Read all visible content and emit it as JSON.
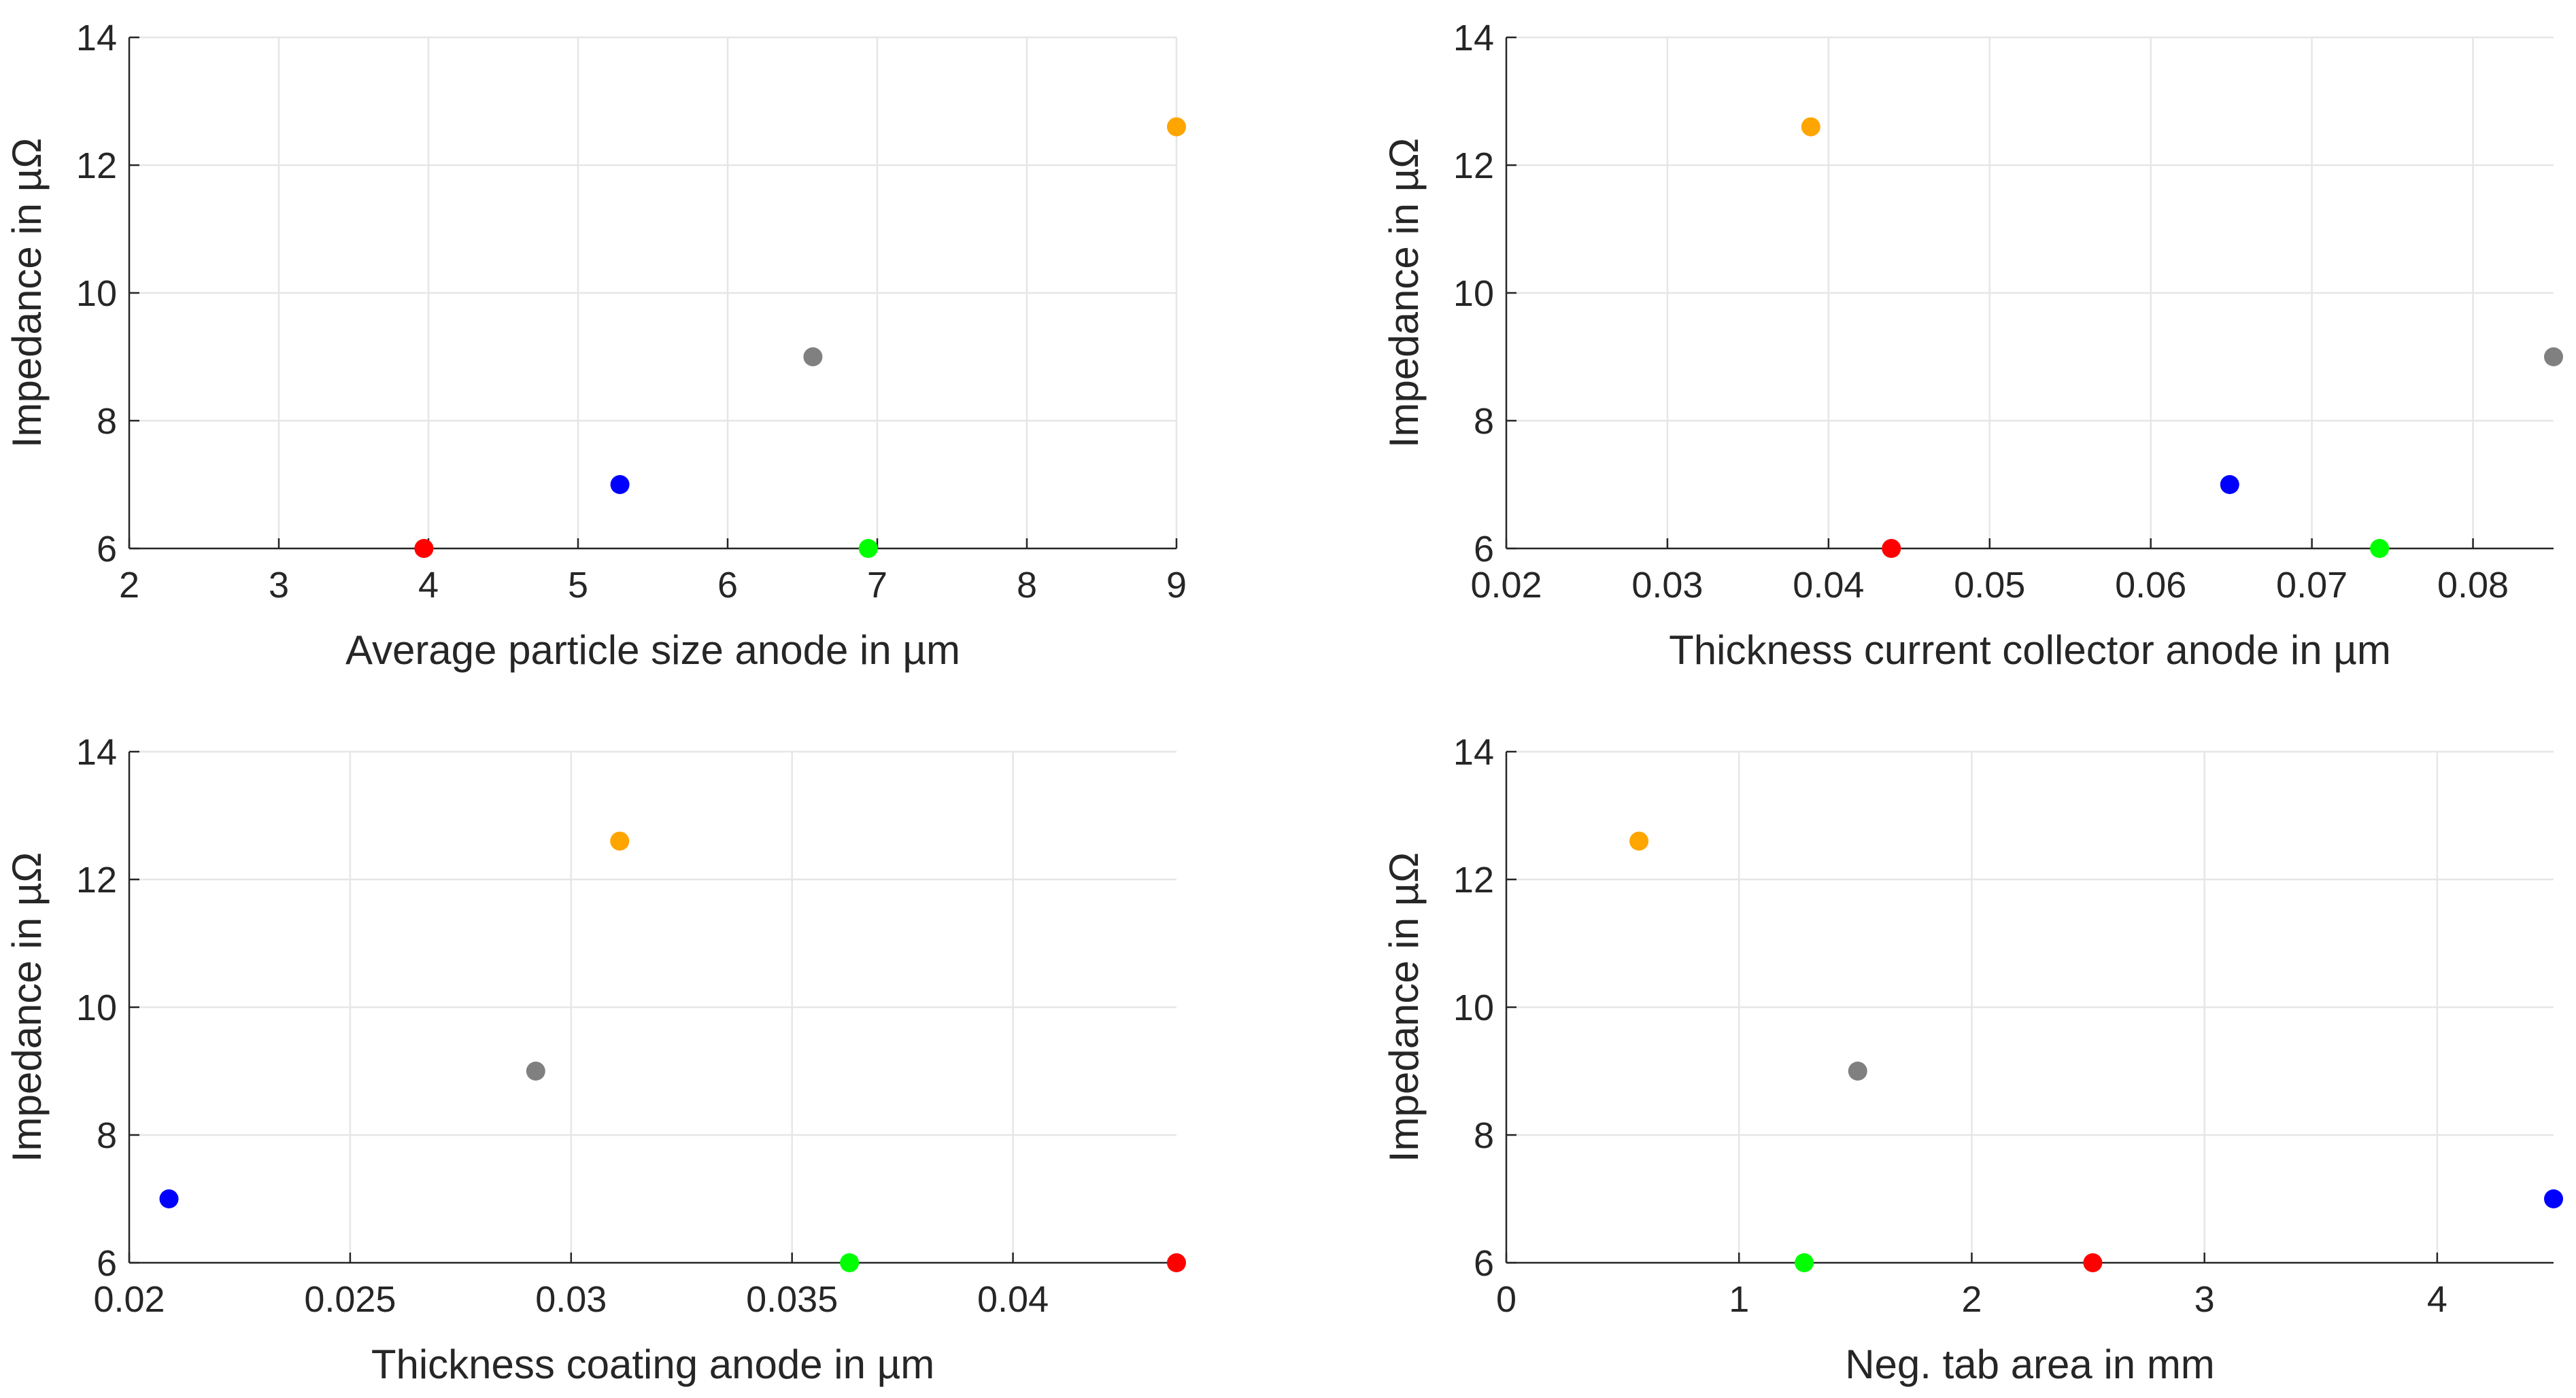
{
  "chart_data": [
    {
      "type": "scatter",
      "xlabel": "Average particle size anode in µm",
      "ylabel": "Impedance in µΩ",
      "xlim": [
        2,
        9
      ],
      "ylim": [
        6,
        14
      ],
      "xticks": [
        2,
        3,
        4,
        5,
        6,
        7,
        8,
        9
      ],
      "xtick_labels": [
        "2",
        "3",
        "4",
        "5",
        "6",
        "7",
        "8",
        "9"
      ],
      "yticks": [
        6,
        8,
        10,
        12,
        14
      ],
      "ytick_labels": [
        "6",
        "8",
        "10",
        "12",
        "14"
      ],
      "grid": true,
      "points": [
        {
          "x": 3.97,
          "y": 6.0,
          "color": "#ff0000"
        },
        {
          "x": 5.28,
          "y": 7.0,
          "color": "#0000ff"
        },
        {
          "x": 6.57,
          "y": 9.0,
          "color": "#808080"
        },
        {
          "x": 6.94,
          "y": 6.0,
          "color": "#00ff00"
        },
        {
          "x": 9.0,
          "y": 12.6,
          "color": "#ffa500"
        }
      ]
    },
    {
      "type": "scatter",
      "xlabel": "Thickness current collector anode in µm",
      "ylabel": "Impedance in µΩ",
      "xlim": [
        0.02,
        0.085
      ],
      "ylim": [
        6,
        14
      ],
      "xticks": [
        0.02,
        0.03,
        0.04,
        0.05,
        0.06,
        0.07,
        0.08
      ],
      "xtick_labels": [
        "0.02",
        "0.03",
        "0.04",
        "0.05",
        "0.06",
        "0.07",
        "0.08"
      ],
      "yticks": [
        6,
        8,
        10,
        12,
        14
      ],
      "ytick_labels": [
        "6",
        "8",
        "10",
        "12",
        "14"
      ],
      "grid": true,
      "points": [
        {
          "x": 0.0389,
          "y": 12.6,
          "color": "#ffa500"
        },
        {
          "x": 0.0439,
          "y": 6.0,
          "color": "#ff0000"
        },
        {
          "x": 0.0649,
          "y": 7.0,
          "color": "#0000ff"
        },
        {
          "x": 0.0742,
          "y": 6.0,
          "color": "#00ff00"
        },
        {
          "x": 0.085,
          "y": 9.0,
          "color": "#808080"
        }
      ]
    },
    {
      "type": "scatter",
      "xlabel": "Thickness coating anode in µm",
      "ylabel": "Impedance in µΩ",
      "xlim": [
        0.02,
        0.0437
      ],
      "ylim": [
        6,
        14
      ],
      "xticks": [
        0.02,
        0.025,
        0.03,
        0.035,
        0.04
      ],
      "xtick_labels": [
        "0.02",
        "0.025",
        "0.03",
        "0.035",
        "0.04"
      ],
      "yticks": [
        6,
        8,
        10,
        12,
        14
      ],
      "ytick_labels": [
        "6",
        "8",
        "10",
        "12",
        "14"
      ],
      "grid": true,
      "points": [
        {
          "x": 0.0209,
          "y": 7.0,
          "color": "#0000ff"
        },
        {
          "x": 0.0292,
          "y": 9.0,
          "color": "#808080"
        },
        {
          "x": 0.0311,
          "y": 12.6,
          "color": "#ffa500"
        },
        {
          "x": 0.0363,
          "y": 6.0,
          "color": "#00ff00"
        },
        {
          "x": 0.0437,
          "y": 6.0,
          "color": "#ff0000"
        }
      ]
    },
    {
      "type": "scatter",
      "xlabel": "Neg. tab area in mm",
      "ylabel": "Impedance in µΩ",
      "xlim": [
        0,
        4.5
      ],
      "ylim": [
        6,
        14
      ],
      "xticks": [
        0,
        1,
        2,
        3,
        4
      ],
      "xtick_labels": [
        "0",
        "1",
        "2",
        "3",
        "4"
      ],
      "yticks": [
        6,
        8,
        10,
        12,
        14
      ],
      "ytick_labels": [
        "6",
        "8",
        "10",
        "12",
        "14"
      ],
      "grid": true,
      "points": [
        {
          "x": 0.57,
          "y": 12.6,
          "color": "#ffa500"
        },
        {
          "x": 1.28,
          "y": 6.0,
          "color": "#00ff00"
        },
        {
          "x": 1.51,
          "y": 9.0,
          "color": "#808080"
        },
        {
          "x": 2.52,
          "y": 6.0,
          "color": "#ff0000"
        },
        {
          "x": 4.5,
          "y": 7.0,
          "color": "#0000ff"
        }
      ]
    }
  ]
}
